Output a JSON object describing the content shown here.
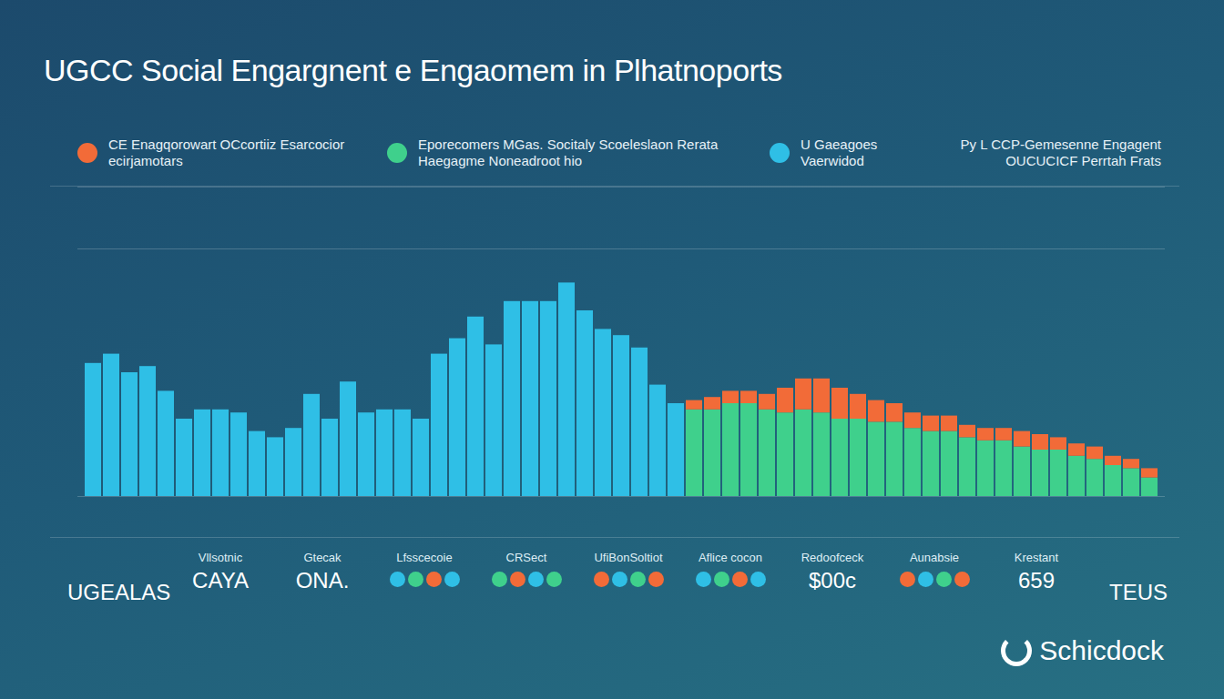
{
  "chart_data": {
    "type": "bar",
    "title": "UGCC Social Engargnent e Engaomem in Plhatnoports",
    "categories": [
      null,
      null,
      null,
      null,
      null,
      null,
      null,
      null,
      null,
      null,
      null,
      null,
      null,
      null,
      null,
      null,
      null,
      null,
      null,
      null,
      null,
      null,
      null,
      null,
      null,
      null,
      null,
      null,
      null,
      null,
      null,
      null,
      null,
      null,
      null,
      null,
      null,
      null,
      null,
      null,
      null,
      null,
      null,
      null,
      null,
      null,
      null,
      null,
      null,
      null,
      null,
      null,
      null,
      null,
      null,
      null,
      null,
      null,
      null
    ],
    "series": [
      {
        "name": "U Gaeagoes Vaerwidod",
        "color": "#2fbfe6",
        "values": [
          43,
          46,
          40,
          42,
          34,
          25,
          28,
          28,
          27,
          21,
          19,
          22,
          33,
          25,
          37,
          27,
          28,
          28,
          25,
          46,
          51,
          58,
          49,
          63,
          63,
          63,
          69,
          60,
          54,
          52,
          48,
          36,
          30,
          null,
          null,
          null,
          null,
          null,
          null,
          null,
          null,
          null,
          null,
          null,
          null,
          null,
          null,
          null,
          null,
          null,
          null,
          null,
          null,
          null,
          null,
          null,
          null,
          null,
          null
        ]
      },
      {
        "name": "Eporecomers MGas. Socitaly Scoeleslaon Rerata Haegagme Noneadroot hio",
        "color": "#3fd08c",
        "values": [
          null,
          null,
          null,
          null,
          null,
          null,
          null,
          null,
          null,
          null,
          null,
          null,
          null,
          null,
          null,
          null,
          null,
          null,
          null,
          null,
          null,
          null,
          null,
          null,
          null,
          null,
          null,
          null,
          null,
          null,
          null,
          null,
          null,
          28,
          28,
          30,
          30,
          28,
          27,
          28,
          27,
          25,
          25,
          24,
          24,
          22,
          21,
          21,
          19,
          18,
          18,
          16,
          15,
          15,
          13,
          12,
          10,
          9,
          6
        ]
      },
      {
        "name": "CE Enagqorowart OCcortiiz Esarcocior ecirjamotars",
        "color": "#f26b38",
        "values": [
          null,
          null,
          null,
          null,
          null,
          null,
          null,
          null,
          null,
          null,
          null,
          null,
          null,
          null,
          null,
          null,
          null,
          null,
          null,
          null,
          null,
          null,
          null,
          null,
          null,
          null,
          null,
          null,
          null,
          null,
          null,
          null,
          null,
          3,
          4,
          4,
          4,
          5,
          8,
          10,
          11,
          10,
          8,
          7,
          6,
          5,
          5,
          5,
          4,
          4,
          4,
          5,
          5,
          4,
          4,
          4,
          3,
          3,
          3
        ]
      }
    ],
    "annotations": [
      "Py L CCP-Gemesenne Engagent OUCUCICF Perrtah Frats"
    ],
    "ylim": [
      0,
      100
    ],
    "yticks": [
      0,
      80,
      100
    ],
    "grid": true,
    "stacked": true,
    "legend": "top",
    "tick_labels": false
  },
  "footer": {
    "items": [
      {
        "value": "UGEALAS"
      },
      {
        "title": "Vllsotnic",
        "value": "CAYA"
      },
      {
        "title": "Gtecak",
        "value": "ONA."
      },
      {
        "title": "Lfsscecoie"
      },
      {
        "title": "CRSect"
      },
      {
        "title": "UfiBonSoltiot"
      },
      {
        "title": "Aflice cocon"
      },
      {
        "title": "Redoofceck",
        "value": "$00c"
      },
      {
        "title": "Aunabsie"
      },
      {
        "title": "Krestant",
        "value": "659"
      },
      {
        "value": "TEUS"
      }
    ]
  },
  "brand": "Schicdock"
}
